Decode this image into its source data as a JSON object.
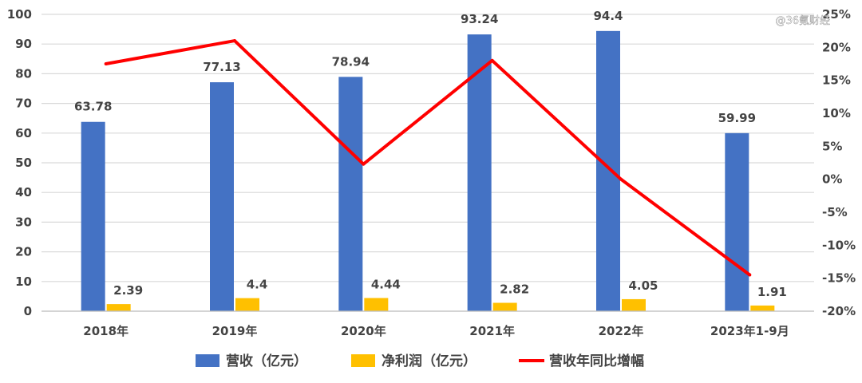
{
  "chart_data": {
    "type": "bar",
    "categories": [
      "2018年",
      "2019年",
      "2020年",
      "2021年",
      "2022年",
      "2023年1-9月"
    ],
    "series": [
      {
        "name": "营收（亿元）",
        "type": "bar",
        "axis": "left",
        "color": "#4472C4",
        "values": [
          63.78,
          77.13,
          78.94,
          93.24,
          94.4,
          59.99
        ],
        "labels": [
          "63.78",
          "77.13",
          "78.94",
          "93.24",
          "94.4",
          "59.99"
        ]
      },
      {
        "name": "净利润（亿元）",
        "type": "bar",
        "axis": "left",
        "color": "#FFC000",
        "values": [
          2.39,
          4.4,
          4.44,
          2.82,
          4.05,
          1.91
        ],
        "labels": [
          "2.39",
          "4.4",
          "4.44",
          "2.82",
          "4.05",
          "1.91"
        ]
      },
      {
        "name": "营收年同比增幅",
        "type": "line",
        "axis": "right",
        "color": "#FF0000",
        "values": [
          17.5,
          21,
          2.3,
          18,
          0,
          -14.5
        ]
      }
    ],
    "ylim_left": [
      0,
      100
    ],
    "yticks_left": [
      "0",
      "10",
      "20",
      "30",
      "40",
      "50",
      "60",
      "70",
      "80",
      "90",
      "100"
    ],
    "ylim_right": [
      -20,
      25
    ],
    "yticks_right": [
      "-20%",
      "-15%",
      "-10%",
      "-5%",
      "0%",
      "5%",
      "10%",
      "15%",
      "20%",
      "25%"
    ],
    "grid": true,
    "legend_position": "bottom"
  },
  "watermark": "@36氪财经"
}
